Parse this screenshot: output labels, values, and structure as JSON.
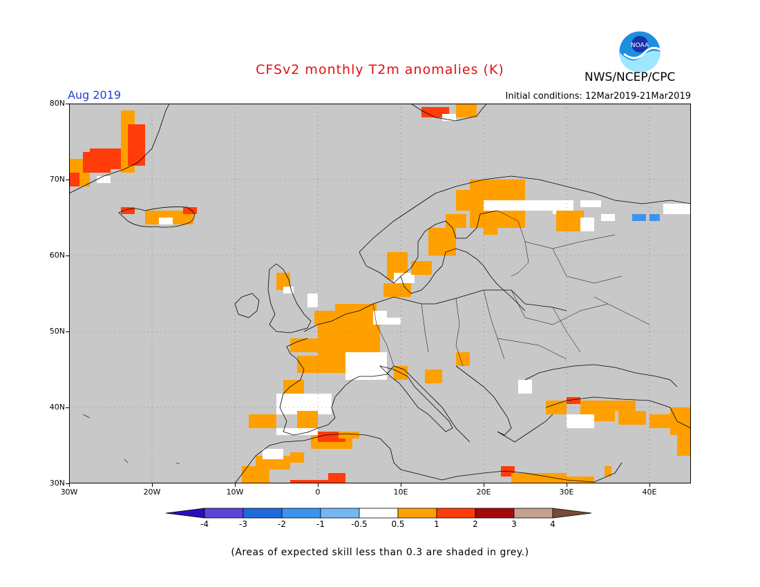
{
  "header": {
    "title": "CFSv2 monthly T2m anomalies (K)",
    "agency": "NWS/NCEP/CPC",
    "logo_text": "NOAA",
    "target_month": "Aug 2019",
    "initial_conditions": "Initial conditions: 12Mar2019-21Mar2019"
  },
  "map": {
    "lat_labels": [
      "80N",
      "70N",
      "60N",
      "50N",
      "40N",
      "30N"
    ],
    "lon_labels": [
      "30W",
      "20W",
      "10W",
      "0",
      "10E",
      "20E",
      "30E",
      "40E"
    ],
    "extent": {
      "lon": [
        -30,
        45
      ],
      "lat": [
        30,
        80
      ]
    },
    "background_color": "#c8c8c8",
    "grid": "dotted"
  },
  "colorbar": {
    "labels": [
      "-4",
      "-3",
      "-2",
      "-1",
      "-0.5",
      "0.5",
      "1",
      "2",
      "3",
      "4"
    ],
    "colors": [
      "#2a0cbf",
      "#5b44d6",
      "#1f6bdb",
      "#3c93ee",
      "#73b8f5",
      "#ffffff",
      "#ffa000",
      "#ff3c0a",
      "#a50a0a",
      "#c8a090",
      "#7a4a3a"
    ]
  },
  "footnote": "(Areas of expected skill less than 0.3 are shaded in grey.)"
}
